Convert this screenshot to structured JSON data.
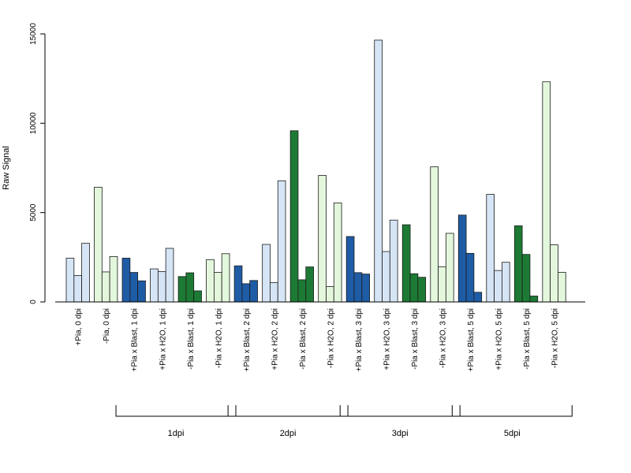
{
  "chart_data": {
    "type": "bar",
    "title": "",
    "xlabel": "",
    "ylabel": "Raw Signal",
    "ylim": [
      0,
      15000
    ],
    "yticks": [
      0,
      5000,
      10000,
      15000
    ],
    "grid": false,
    "categories": [
      "+Pia, 0 dpi",
      "-Pia, 0 dpi",
      "+Pia x Blast, 1 dpi",
      "+Pia x H2O, 1 dpi",
      "-Pia x Blast, 1 dpi",
      "-Pia x H2O, 1 dpi",
      "+Pia x Blast, 2 dpi",
      "+Pia x H2O, 2 dpi",
      "-Pia x Blast, 2 dpi",
      "-Pia x H2O, 2 dpi",
      "+Pia x Blast, 3 dpi",
      "+Pia x H2O, 3 dpi",
      "-Pia x Blast, 3 dpi",
      "-Pia x H2O, 3 dpi",
      "+Pia x Blast, 5 dpi",
      "+Pia x H2O, 5 dpi",
      "-Pia x Blast, 5 dpi",
      "-Pia x H2O, 5 dpi"
    ],
    "bar_colors": [
      "#d6e5f6",
      "#e3f7dc",
      "#1f5ca6",
      "#d6e5f6",
      "#1d7a34",
      "#e3f7dc",
      "#1f5ca6",
      "#d6e5f6",
      "#1d7a34",
      "#e3f7dc",
      "#1f5ca6",
      "#d6e5f6",
      "#1d7a34",
      "#e3f7dc",
      "#1f5ca6",
      "#d6e5f6",
      "#1d7a34",
      "#e3f7dc"
    ],
    "values": [
      [
        2450,
        1480,
        3280
      ],
      [
        6420,
        1680,
        2540
      ],
      [
        2450,
        1650,
        1180
      ],
      [
        1850,
        1700,
        3000
      ],
      [
        1420,
        1630,
        620
      ],
      [
        2370,
        1650,
        2700
      ],
      [
        2020,
        1020,
        1200
      ],
      [
        3220,
        1080,
        6780
      ],
      [
        9580,
        1240,
        1960
      ],
      [
        7080,
        860,
        5540
      ],
      [
        3660,
        1640,
        1560
      ],
      [
        14650,
        2820,
        4580
      ],
      [
        4320,
        1580,
        1380
      ],
      [
        7560,
        1960,
        3840
      ],
      [
        4860,
        2720,
        540
      ],
      [
        6020,
        1760,
        2220
      ],
      [
        4260,
        2660,
        330
      ],
      [
        12320,
        3200,
        1660
      ]
    ],
    "groups": [
      {
        "label": "1dpi",
        "start_index": 2,
        "end_index": 5
      },
      {
        "label": "2dpi",
        "start_index": 6,
        "end_index": 9
      },
      {
        "label": "3dpi",
        "start_index": 10,
        "end_index": 13
      },
      {
        "label": "5dpi",
        "start_index": 14,
        "end_index": 17
      }
    ]
  }
}
